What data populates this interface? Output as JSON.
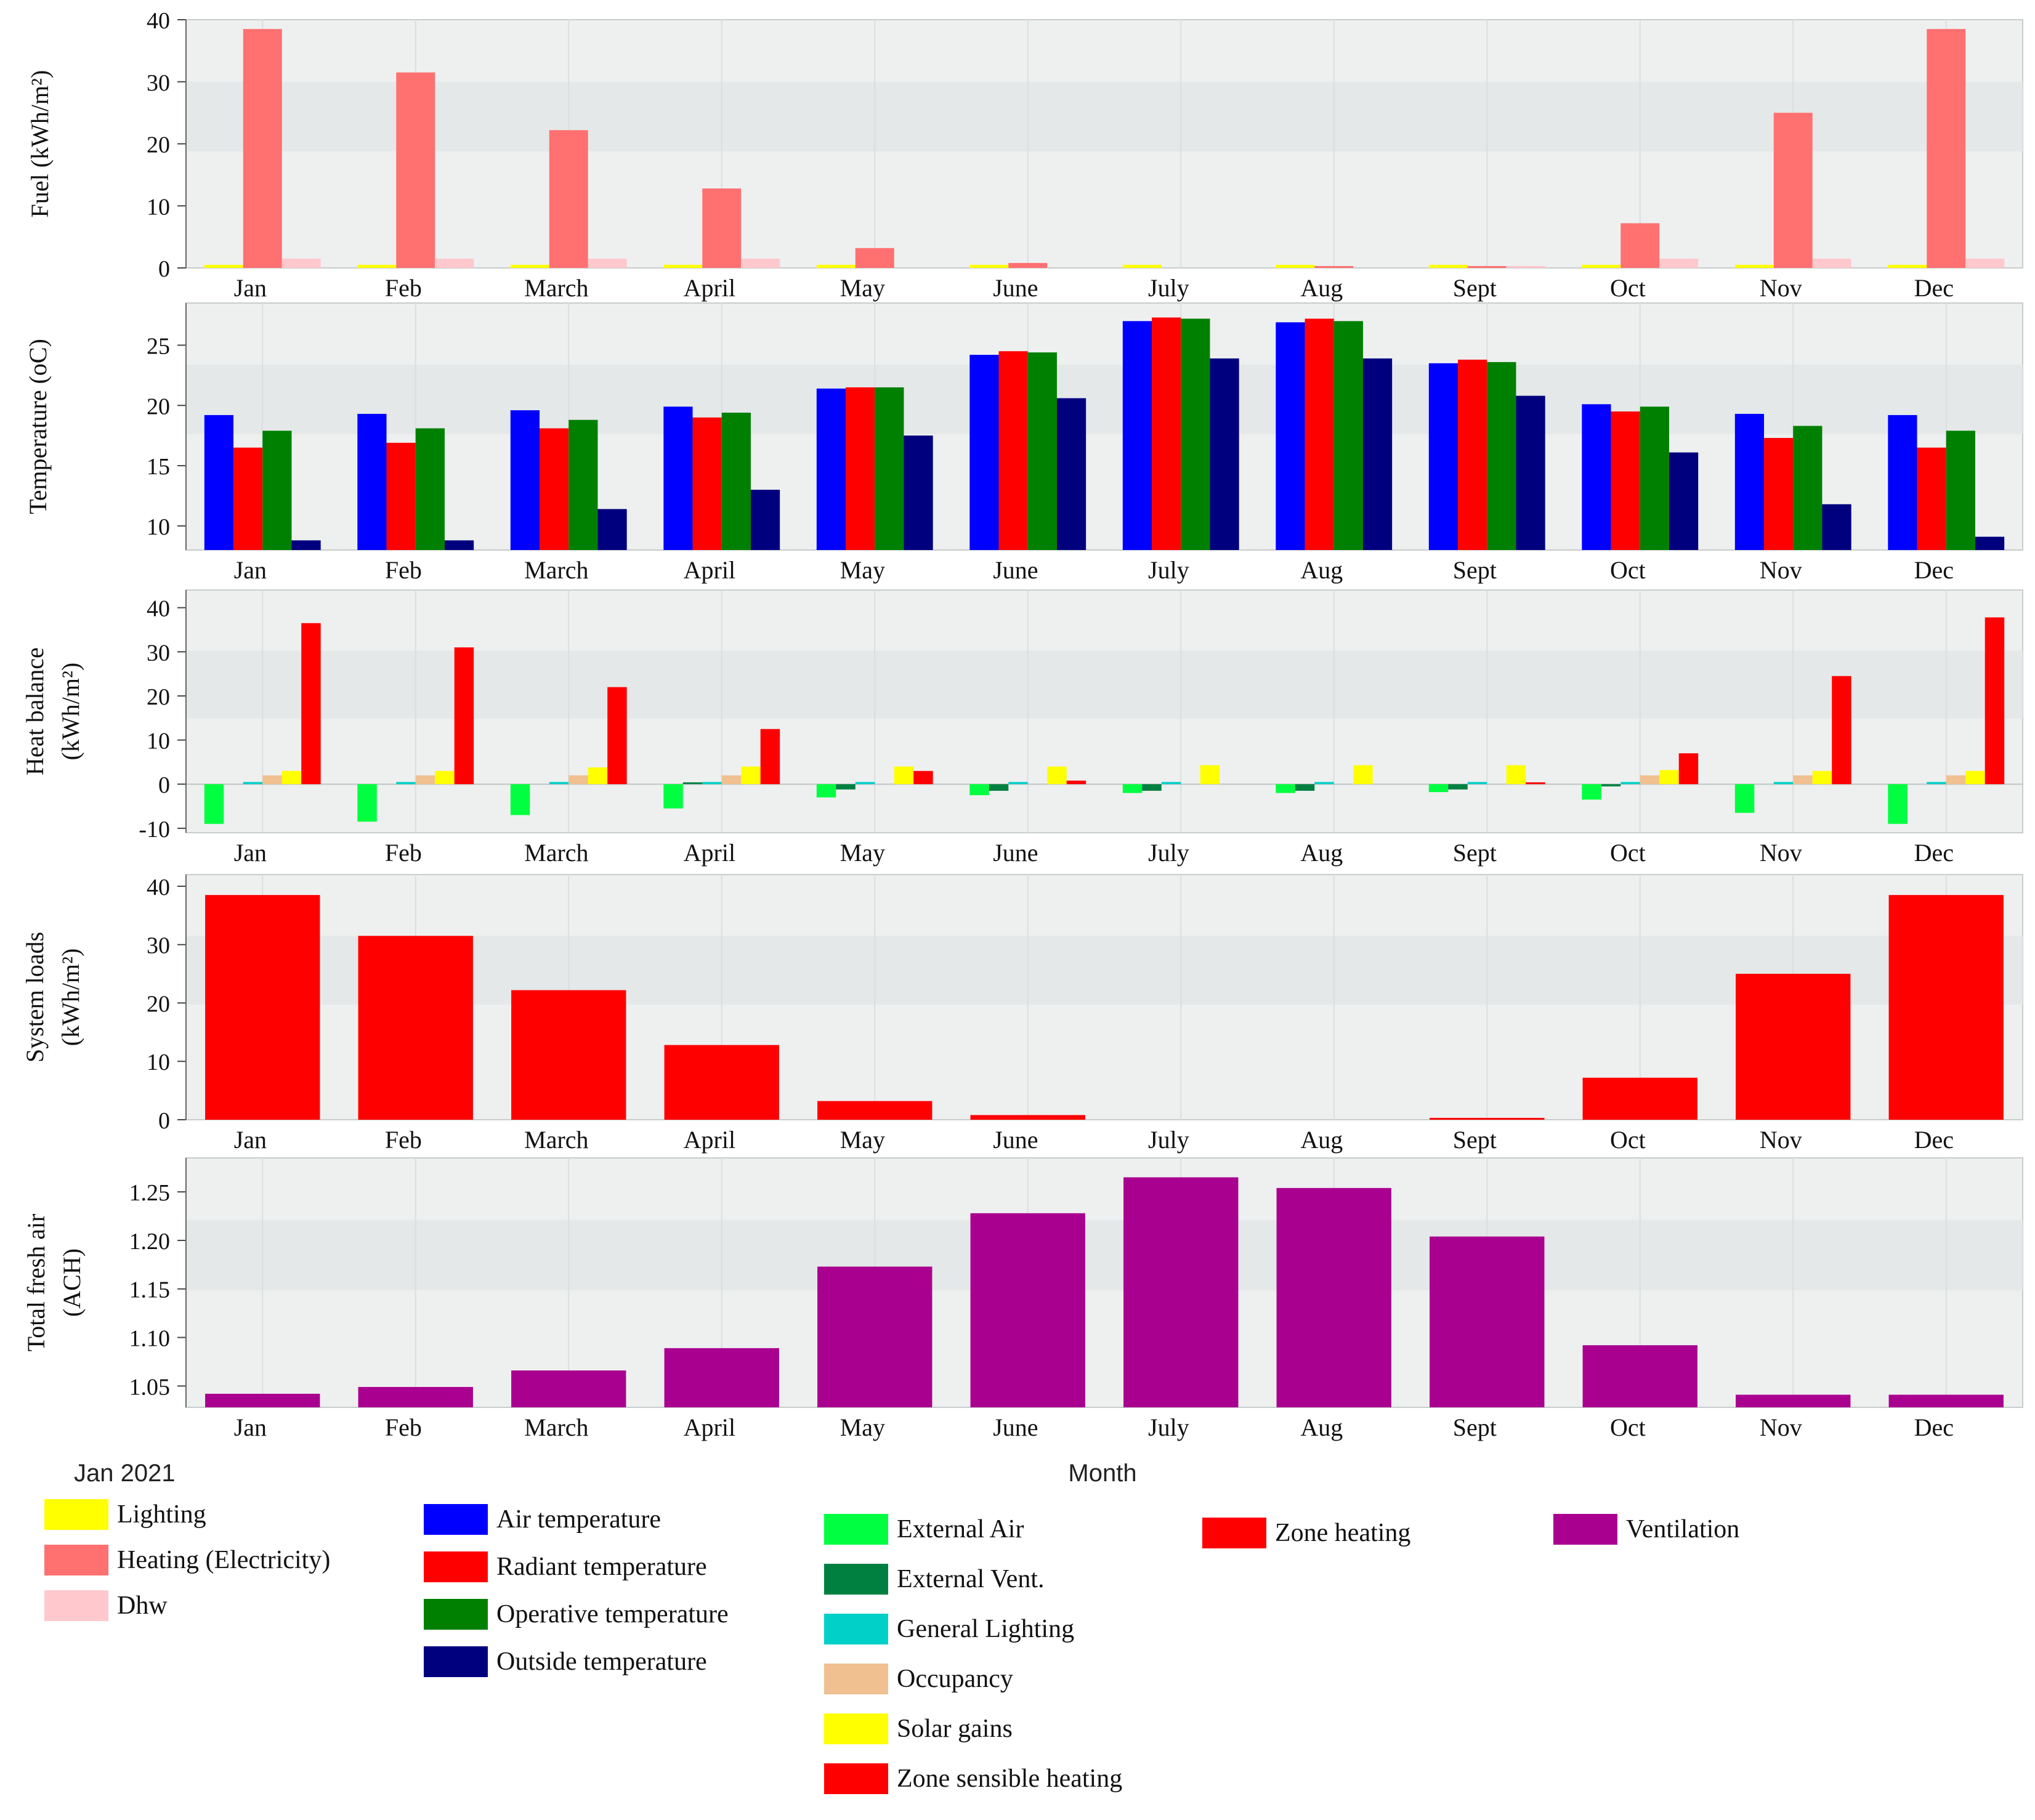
{
  "months": [
    "Jan",
    "Feb",
    "March",
    "April",
    "May",
    "June",
    "July",
    "Aug",
    "Sept",
    "Oct",
    "Nov",
    "Dec"
  ],
  "footer": {
    "date_label": "Jan  2021",
    "x_axis_label": "Month"
  },
  "chart_data": [
    {
      "id": "fuel",
      "type": "bar",
      "ylabel": "Fuel    (kWh/m²)",
      "ylim": [
        0,
        40
      ],
      "yticks": [
        0,
        10,
        20,
        30,
        40
      ],
      "series": [
        {
          "name": "Lighting",
          "color": "#ffff00",
          "values": [
            0.5,
            0.5,
            0.5,
            0.5,
            0.5,
            0.5,
            0.5,
            0.5,
            0.5,
            0.5,
            0.5,
            0.5
          ]
        },
        {
          "name": "Heating (Electricity)",
          "color": "#ff7070",
          "values": [
            38.5,
            31.5,
            22.2,
            12.8,
            3.2,
            0.8,
            0,
            0.3,
            0.3,
            7.2,
            25,
            38.5
          ]
        },
        {
          "name": "Dhw",
          "color": "#ffc8cc",
          "values": [
            1.5,
            1.5,
            1.5,
            1.5,
            0,
            0,
            0,
            0,
            0.3,
            1.5,
            1.5,
            1.5
          ]
        }
      ]
    },
    {
      "id": "temperature",
      "type": "bar",
      "ylabel": "Temperature (oC)",
      "ylim": [
        8,
        28.5
      ],
      "yticks": [
        10,
        15,
        20,
        25
      ],
      "series": [
        {
          "name": "Air temperature",
          "color": "#0000ff",
          "values": [
            19.2,
            19.3,
            19.6,
            19.9,
            21.4,
            24.2,
            27,
            26.9,
            23.5,
            20.1,
            19.3,
            19.2
          ]
        },
        {
          "name": "Radiant temperature",
          "color": "#ff0000",
          "values": [
            16.5,
            16.9,
            18.1,
            19,
            21.5,
            24.5,
            27.3,
            27.2,
            23.8,
            19.5,
            17.3,
            16.5
          ]
        },
        {
          "name": "Operative temperature",
          "color": "#008000",
          "values": [
            17.9,
            18.1,
            18.8,
            19.4,
            21.5,
            24.4,
            27.2,
            27,
            23.6,
            19.9,
            18.3,
            17.9
          ]
        },
        {
          "name": "Outside temperature",
          "color": "#00007f",
          "values": [
            8.8,
            8.8,
            11.4,
            13,
            17.5,
            20.6,
            23.9,
            23.9,
            20.8,
            16.1,
            11.8,
            9.1
          ]
        }
      ]
    },
    {
      "id": "heat_balance",
      "type": "bar",
      "ylabel": "Heat balance",
      "ylabel2": "(kWh/m²)",
      "ylim": [
        -11,
        44
      ],
      "yticks": [
        -10,
        0,
        10,
        20,
        30,
        40
      ],
      "series": [
        {
          "name": "External Air",
          "color": "#00ff40",
          "values": [
            -9,
            -8.5,
            -7,
            -5.5,
            -3,
            -2.5,
            -2,
            -2,
            -1.8,
            -3.5,
            -6.5,
            -9
          ]
        },
        {
          "name": "External Vent.",
          "color": "#008040",
          "values": [
            0,
            0,
            0,
            -0.3,
            -1.2,
            -1.5,
            -1.5,
            -1.5,
            -1.2,
            -0.5,
            0,
            0
          ]
        },
        {
          "name": "General Lighting",
          "color": "#00d0c8",
          "values": [
            0.5,
            0.5,
            0.5,
            0.5,
            0.5,
            0.5,
            0.5,
            0.5,
            0.5,
            0.5,
            0.5,
            0.5
          ]
        },
        {
          "name": "Occupancy",
          "color": "#f0c090",
          "values": [
            2,
            2,
            2,
            2,
            0,
            0,
            0,
            0,
            0,
            2,
            2,
            2
          ]
        },
        {
          "name": "Solar gains",
          "color": "#ffff00",
          "values": [
            3,
            3,
            3.8,
            4,
            4,
            4,
            4.3,
            4.3,
            4.3,
            3.2,
            3,
            3
          ]
        },
        {
          "name": "Zone sensible heating",
          "color": "#ff0000",
          "values": [
            36.5,
            31,
            22,
            12.5,
            3,
            0.8,
            0,
            0,
            0.3,
            7,
            24.5,
            37.8
          ]
        }
      ]
    },
    {
      "id": "system_loads",
      "type": "bar",
      "ylabel": "System loads",
      "ylabel2": "(kWh/m²)",
      "ylim": [
        0,
        42
      ],
      "yticks": [
        0,
        10,
        20,
        30,
        40
      ],
      "series": [
        {
          "name": "Zone heating",
          "color": "#ff0000",
          "values": [
            38.5,
            31.5,
            22.2,
            12.8,
            3.2,
            0.8,
            0,
            0,
            0.2,
            7.2,
            25,
            38.5
          ]
        }
      ]
    },
    {
      "id": "fresh_air",
      "type": "bar",
      "ylabel": "Total fresh air",
      "ylabel2": "(ACH)",
      "ylim": [
        1.028,
        1.285
      ],
      "yticks": [
        1.05,
        1.1,
        1.15,
        1.2,
        1.25
      ],
      "ytick_labels": [
        "1.05",
        "1.10",
        "1.15",
        "1.20",
        "1.25"
      ],
      "series": [
        {
          "name": "Ventilation",
          "color": "#aa0090",
          "values": [
            1.042,
            1.049,
            1.066,
            1.089,
            1.173,
            1.228,
            1.265,
            1.254,
            1.204,
            1.092,
            1.041,
            1.041
          ]
        }
      ]
    }
  ],
  "legend_columns": [
    [
      {
        "label": "Lighting",
        "color": "#ffff00"
      },
      {
        "label": "Heating (Electricity)",
        "color": "#ff7070"
      },
      {
        "label": "Dhw",
        "color": "#ffc8cc"
      }
    ],
    [
      {
        "label": "Air temperature",
        "color": "#0000ff"
      },
      {
        "label": "Radiant temperature",
        "color": "#ff0000"
      },
      {
        "label": "Operative temperature",
        "color": "#008000"
      },
      {
        "label": "Outside temperature",
        "color": "#00007f"
      }
    ],
    [
      {
        "label": "External Air",
        "color": "#00ff40"
      },
      {
        "label": "External Vent.",
        "color": "#008040"
      },
      {
        "label": "General Lighting",
        "color": "#00d0c8"
      },
      {
        "label": "Occupancy",
        "color": "#f0c090"
      },
      {
        "label": "Solar gains",
        "color": "#ffff00"
      },
      {
        "label": "Zone sensible heating",
        "color": "#ff0000"
      }
    ],
    [
      {
        "label": "Zone heating",
        "color": "#ff0000"
      }
    ],
    [
      {
        "label": "Ventilation",
        "color": "#aa0090"
      }
    ]
  ]
}
